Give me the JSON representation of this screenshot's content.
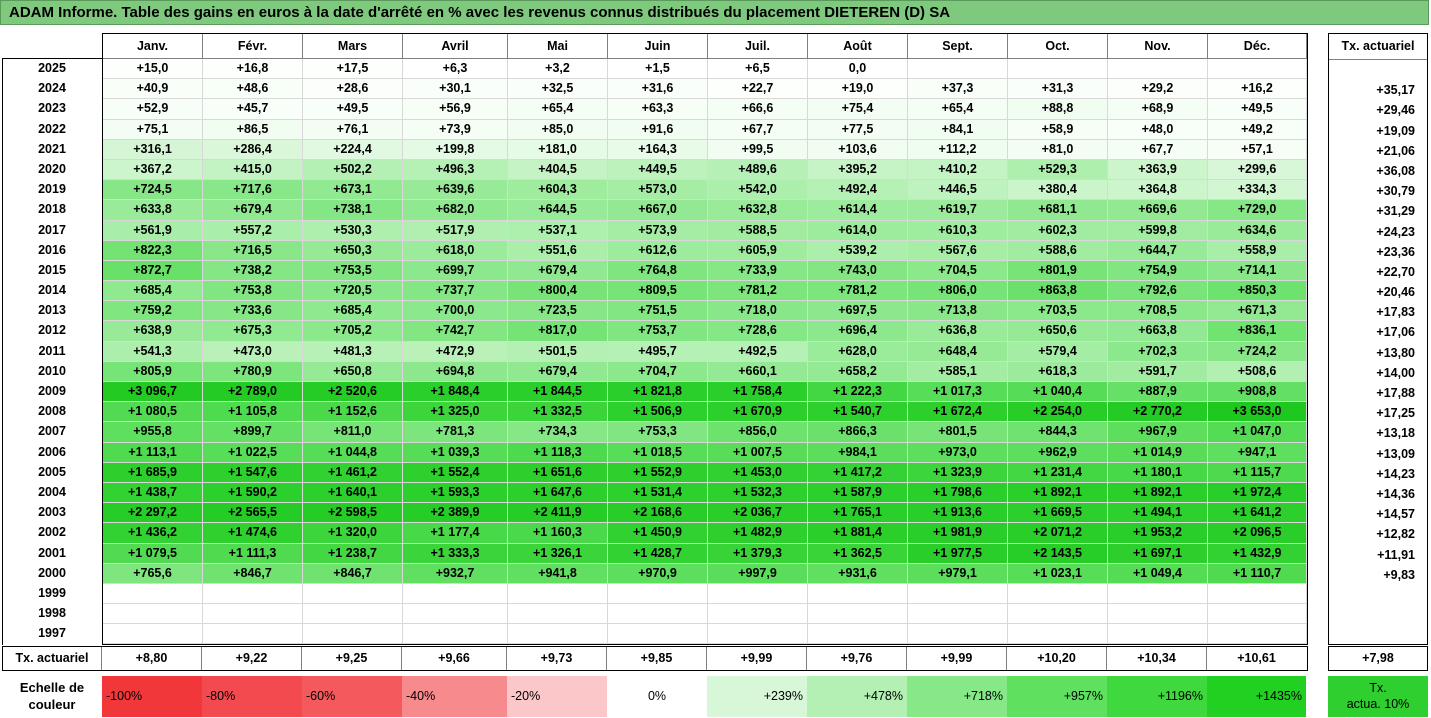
{
  "title": "ADAM Informe. Table des gains en euros à la date d'arrêté en % avec les revenus connus distribués du placement DIETEREN (D) SA",
  "months": [
    "Janv.",
    "Févr.",
    "Mars",
    "Avril",
    "Mai",
    "Juin",
    "Juil.",
    "Août",
    "Sept.",
    "Oct.",
    "Nov.",
    "Déc."
  ],
  "tx_header": "Tx. actuariel",
  "rows": [
    {
      "year": "2025",
      "vals": [
        "+15,0",
        "+16,8",
        "+17,5",
        "+6,3",
        "+3,2",
        "+1,5",
        "+6,5",
        "0,0",
        "",
        "",
        "",
        ""
      ],
      "tx": ""
    },
    {
      "year": "2024",
      "vals": [
        "+40,9",
        "+48,6",
        "+28,6",
        "+30,1",
        "+32,5",
        "+31,6",
        "+22,7",
        "+19,0",
        "+37,3",
        "+31,3",
        "+29,2",
        "+16,2"
      ],
      "tx": "+35,17"
    },
    {
      "year": "2023",
      "vals": [
        "+52,9",
        "+45,7",
        "+49,5",
        "+56,9",
        "+65,4",
        "+63,3",
        "+66,6",
        "+75,4",
        "+65,4",
        "+88,8",
        "+68,9",
        "+49,5"
      ],
      "tx": "+29,46"
    },
    {
      "year": "2022",
      "vals": [
        "+75,1",
        "+86,5",
        "+76,1",
        "+73,9",
        "+85,0",
        "+91,6",
        "+67,7",
        "+77,5",
        "+84,1",
        "+58,9",
        "+48,0",
        "+49,2"
      ],
      "tx": "+19,09"
    },
    {
      "year": "2021",
      "vals": [
        "+316,1",
        "+286,4",
        "+224,4",
        "+199,8",
        "+181,0",
        "+164,3",
        "+99,5",
        "+103,6",
        "+112,2",
        "+81,0",
        "+67,7",
        "+57,1"
      ],
      "tx": "+21,06"
    },
    {
      "year": "2020",
      "vals": [
        "+367,2",
        "+415,0",
        "+502,2",
        "+496,3",
        "+404,5",
        "+449,5",
        "+489,6",
        "+395,2",
        "+410,2",
        "+529,3",
        "+363,9",
        "+299,6"
      ],
      "tx": "+36,08"
    },
    {
      "year": "2019",
      "vals": [
        "+724,5",
        "+717,6",
        "+673,1",
        "+639,6",
        "+604,3",
        "+573,0",
        "+542,0",
        "+492,4",
        "+446,5",
        "+380,4",
        "+364,8",
        "+334,3"
      ],
      "tx": "+30,79"
    },
    {
      "year": "2018",
      "vals": [
        "+633,8",
        "+679,4",
        "+738,1",
        "+682,0",
        "+644,5",
        "+667,0",
        "+632,8",
        "+614,4",
        "+619,7",
        "+681,1",
        "+669,6",
        "+729,0"
      ],
      "tx": "+31,29"
    },
    {
      "year": "2017",
      "vals": [
        "+561,9",
        "+557,2",
        "+530,3",
        "+517,9",
        "+537,1",
        "+573,9",
        "+588,5",
        "+614,0",
        "+610,3",
        "+602,3",
        "+599,8",
        "+634,6"
      ],
      "tx": "+24,23"
    },
    {
      "year": "2016",
      "vals": [
        "+822,3",
        "+716,5",
        "+650,3",
        "+618,0",
        "+551,6",
        "+612,6",
        "+605,9",
        "+539,2",
        "+567,6",
        "+588,6",
        "+644,7",
        "+558,9"
      ],
      "tx": "+23,36"
    },
    {
      "year": "2015",
      "vals": [
        "+872,7",
        "+738,2",
        "+753,5",
        "+699,7",
        "+679,4",
        "+764,8",
        "+733,9",
        "+743,0",
        "+704,5",
        "+801,9",
        "+754,9",
        "+714,1"
      ],
      "tx": "+22,70"
    },
    {
      "year": "2014",
      "vals": [
        "+685,4",
        "+753,8",
        "+720,5",
        "+737,7",
        "+800,4",
        "+809,5",
        "+781,2",
        "+781,2",
        "+806,0",
        "+863,8",
        "+792,6",
        "+850,3"
      ],
      "tx": "+20,46"
    },
    {
      "year": "2013",
      "vals": [
        "+759,2",
        "+733,6",
        "+685,4",
        "+700,0",
        "+723,5",
        "+751,5",
        "+718,0",
        "+697,5",
        "+713,8",
        "+703,5",
        "+708,5",
        "+671,3"
      ],
      "tx": "+17,83"
    },
    {
      "year": "2012",
      "vals": [
        "+638,9",
        "+675,3",
        "+705,2",
        "+742,7",
        "+817,0",
        "+753,7",
        "+728,6",
        "+696,4",
        "+636,8",
        "+650,6",
        "+663,8",
        "+836,1"
      ],
      "tx": "+17,06"
    },
    {
      "year": "2011",
      "vals": [
        "+541,3",
        "+473,0",
        "+481,3",
        "+472,9",
        "+501,5",
        "+495,7",
        "+492,5",
        "+628,0",
        "+648,4",
        "+579,4",
        "+702,3",
        "+724,2"
      ],
      "tx": "+13,80"
    },
    {
      "year": "2010",
      "vals": [
        "+805,9",
        "+780,9",
        "+650,8",
        "+694,8",
        "+679,4",
        "+704,7",
        "+660,1",
        "+658,2",
        "+585,1",
        "+618,3",
        "+591,7",
        "+508,6"
      ],
      "tx": "+14,00"
    },
    {
      "year": "2009",
      "vals": [
        "+3 096,7",
        "+2 789,0",
        "+2 520,6",
        "+1 848,4",
        "+1 844,5",
        "+1 821,8",
        "+1 758,4",
        "+1 222,3",
        "+1 017,3",
        "+1 040,4",
        "+887,9",
        "+908,8"
      ],
      "tx": "+17,88"
    },
    {
      "year": "2008",
      "vals": [
        "+1 080,5",
        "+1 105,8",
        "+1 152,6",
        "+1 325,0",
        "+1 332,5",
        "+1 506,9",
        "+1 670,9",
        "+1 540,7",
        "+1 672,4",
        "+2 254,0",
        "+2 770,2",
        "+3 653,0"
      ],
      "tx": "+17,25"
    },
    {
      "year": "2007",
      "vals": [
        "+955,8",
        "+899,7",
        "+811,0",
        "+781,3",
        "+734,3",
        "+753,3",
        "+856,0",
        "+866,3",
        "+801,5",
        "+844,3",
        "+967,9",
        "+1 047,0"
      ],
      "tx": "+13,18"
    },
    {
      "year": "2006",
      "vals": [
        "+1 113,1",
        "+1 022,5",
        "+1 044,8",
        "+1 039,3",
        "+1 118,3",
        "+1 018,5",
        "+1 007,5",
        "+984,1",
        "+973,0",
        "+962,9",
        "+1 014,9",
        "+947,1"
      ],
      "tx": "+13,09"
    },
    {
      "year": "2005",
      "vals": [
        "+1 685,9",
        "+1 547,6",
        "+1 461,2",
        "+1 552,4",
        "+1 651,6",
        "+1 552,9",
        "+1 453,0",
        "+1 417,2",
        "+1 323,9",
        "+1 231,4",
        "+1 180,1",
        "+1 115,7"
      ],
      "tx": "+14,23"
    },
    {
      "year": "2004",
      "vals": [
        "+1 438,7",
        "+1 590,2",
        "+1 640,1",
        "+1 593,3",
        "+1 647,6",
        "+1 531,4",
        "+1 532,3",
        "+1 587,9",
        "+1 798,6",
        "+1 892,1",
        "+1 892,1",
        "+1 972,4"
      ],
      "tx": "+14,36"
    },
    {
      "year": "2003",
      "vals": [
        "+2 297,2",
        "+2 565,5",
        "+2 598,5",
        "+2 389,9",
        "+2 411,9",
        "+2 168,6",
        "+2 036,7",
        "+1 765,1",
        "+1 913,6",
        "+1 669,5",
        "+1 494,1",
        "+1 641,2"
      ],
      "tx": "+14,57"
    },
    {
      "year": "2002",
      "vals": [
        "+1 436,2",
        "+1 474,6",
        "+1 320,0",
        "+1 177,4",
        "+1 160,3",
        "+1 450,9",
        "+1 482,9",
        "+1 881,4",
        "+1 981,9",
        "+2 071,2",
        "+1 953,2",
        "+2 096,5"
      ],
      "tx": "+12,82"
    },
    {
      "year": "2001",
      "vals": [
        "+1 079,5",
        "+1 111,3",
        "+1 238,7",
        "+1 333,3",
        "+1 326,1",
        "+1 428,7",
        "+1 379,3",
        "+1 362,5",
        "+1 977,5",
        "+2 143,5",
        "+1 697,1",
        "+1 432,9"
      ],
      "tx": "+11,91"
    },
    {
      "year": "2000",
      "vals": [
        "+765,6",
        "+846,7",
        "+846,7",
        "+932,7",
        "+941,8",
        "+970,9",
        "+997,9",
        "+931,6",
        "+979,1",
        "+1 023,1",
        "+1 049,4",
        "+1 110,7"
      ],
      "tx": "+9,83"
    },
    {
      "year": "1999",
      "vals": [
        "",
        "",
        "",
        "",
        "",
        "",
        "",
        "",
        "",
        "",
        "",
        ""
      ],
      "tx": ""
    },
    {
      "year": "1998",
      "vals": [
        "",
        "",
        "",
        "",
        "",
        "",
        "",
        "",
        "",
        "",
        "",
        ""
      ],
      "tx": ""
    },
    {
      "year": "1997",
      "vals": [
        "",
        "",
        "",
        "",
        "",
        "",
        "",
        "",
        "",
        "",
        "",
        ""
      ],
      "tx": ""
    }
  ],
  "summary": {
    "label": "Tx. actuariel",
    "vals": [
      "+8,80",
      "+9,22",
      "+9,25",
      "+9,66",
      "+9,73",
      "+9,85",
      "+9,99",
      "+9,76",
      "+9,99",
      "+10,20",
      "+10,34",
      "+10,61"
    ],
    "tx": "+7,98"
  },
  "scale": {
    "label_line1": "Echelle de",
    "label_line2": "couleur",
    "items": [
      {
        "label": "-100%",
        "color": "#f2373b",
        "kind": "neg"
      },
      {
        "label": "-80%",
        "color": "#f24a4e",
        "kind": "neg"
      },
      {
        "label": "-60%",
        "color": "#f45a5d",
        "kind": "neg"
      },
      {
        "label": "-40%",
        "color": "#f78a8c",
        "kind": "neg"
      },
      {
        "label": "-20%",
        "color": "#fbc7c8",
        "kind": "neg"
      },
      {
        "label": "0%",
        "color": "#ffffff",
        "kind": "zero"
      },
      {
        "label": "+239%",
        "color": "#d8f7d8",
        "kind": "pos"
      },
      {
        "label": "+478%",
        "color": "#b4f0b4",
        "kind": "pos"
      },
      {
        "label": "+718%",
        "color": "#86e886",
        "kind": "pos"
      },
      {
        "label": "+957%",
        "color": "#5fe05f",
        "kind": "pos"
      },
      {
        "label": "+1196%",
        "color": "#3fd83f",
        "kind": "pos"
      },
      {
        "label": "+1435%",
        "color": "#22d022",
        "kind": "pos"
      }
    ],
    "tx_line1": "Tx.",
    "tx_line2": "actua. 10%"
  }
}
